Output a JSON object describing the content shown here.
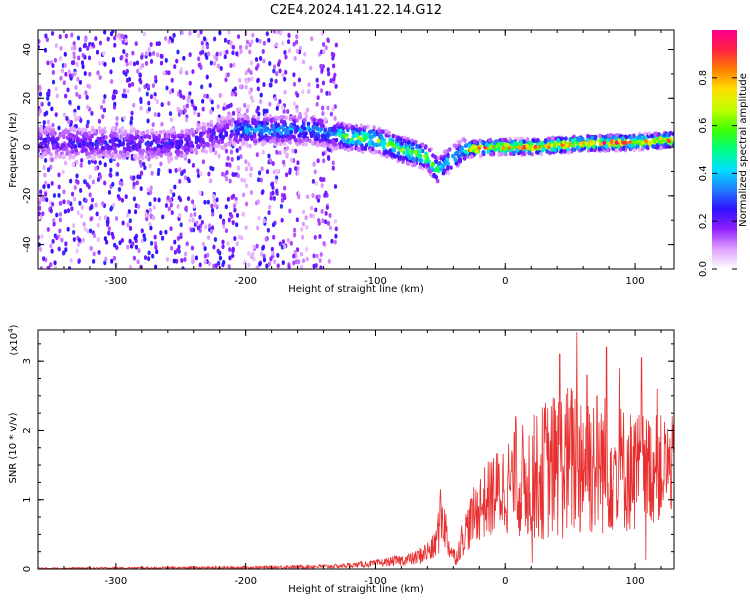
{
  "figure_title": "C2E4.2024.141.22.14.G12",
  "chart_data": [
    {
      "type": "heatmap",
      "title": "C2E4.2024.141.22.14.G12",
      "xlabel": "Height of straight line (km)",
      "ylabel": "Frequency (Hz)",
      "xlim": [
        -360,
        130
      ],
      "ylim": [
        -50,
        48
      ],
      "x_ticks": [
        -300,
        -200,
        -100,
        0,
        100
      ],
      "x_tick_labels": [
        "-300",
        "-200",
        "-100",
        "0",
        "100"
      ],
      "y_ticks": [
        -40,
        -20,
        0,
        20,
        40
      ],
      "y_tick_labels": [
        "-40",
        "-20",
        "0",
        "20",
        "40"
      ],
      "colorbar": {
        "label": "Normalized spectral amplitude",
        "range": [
          0.0,
          1.0
        ],
        "ticks": [
          0.0,
          0.2,
          0.4,
          0.6,
          0.8
        ],
        "tick_labels": [
          "0.0",
          "0.2",
          "0.4",
          "0.6",
          "0.8"
        ],
        "colors": [
          "#ffffff",
          "#e0a0ff",
          "#9020ff",
          "#3010ff",
          "#2080ff",
          "#00e0ff",
          "#00ff80",
          "#40ff00",
          "#c0ff00",
          "#ffe000",
          "#ff8000",
          "#ff2040",
          "#ff0090"
        ]
      },
      "trace_center": [
        {
          "x": -360,
          "f": 2
        },
        {
          "x": -250,
          "f": 1
        },
        {
          "x": -210,
          "f": 7
        },
        {
          "x": -150,
          "f": 7
        },
        {
          "x": -120,
          "f": 4
        },
        {
          "x": -100,
          "f": 3
        },
        {
          "x": -80,
          "f": -1
        },
        {
          "x": -60,
          "f": -4
        },
        {
          "x": -52,
          "f": -10
        },
        {
          "x": -45,
          "f": -6
        },
        {
          "x": -30,
          "f": -1
        },
        {
          "x": -10,
          "f": 0
        },
        {
          "x": 20,
          "f": 0
        },
        {
          "x": 60,
          "f": 1.5
        },
        {
          "x": 100,
          "f": 2
        },
        {
          "x": 130,
          "f": 3
        }
      ],
      "noise_region": {
        "x_start": -360,
        "x_end": -130,
        "f_range": [
          -50,
          48
        ],
        "gaps": [
          [
            -205,
            -192
          ],
          [
            -158,
            -148
          ]
        ]
      }
    },
    {
      "type": "line",
      "xlabel": "Height of straight line (km)",
      "ylabel": "SNR (10 * v/v)",
      "y_multiplier": "(x10",
      "y_multiplier_exp": "4",
      "y_multiplier_close": ")",
      "xlim": [
        -360,
        130
      ],
      "ylim": [
        0,
        3.45
      ],
      "x_ticks": [
        -300,
        -200,
        -100,
        0,
        100
      ],
      "x_tick_labels": [
        "-300",
        "-200",
        "-100",
        "0",
        "100"
      ],
      "y_ticks": [
        0,
        1,
        2,
        3
      ],
      "y_tick_labels": [
        "0",
        "1",
        "2",
        "3"
      ],
      "color": "#e83030",
      "envelope": [
        {
          "x": -360,
          "base": 0.01,
          "amp": 0.01
        },
        {
          "x": -200,
          "base": 0.02,
          "amp": 0.02
        },
        {
          "x": -130,
          "base": 0.04,
          "amp": 0.03
        },
        {
          "x": -100,
          "base": 0.08,
          "amp": 0.05
        },
        {
          "x": -70,
          "base": 0.15,
          "amp": 0.1
        },
        {
          "x": -55,
          "base": 0.3,
          "amp": 0.2
        },
        {
          "x": -48,
          "base": 0.8,
          "amp": 0.5
        },
        {
          "x": -44,
          "base": 0.35,
          "amp": 0.2
        },
        {
          "x": -38,
          "base": 0.15,
          "amp": 0.1
        },
        {
          "x": -32,
          "base": 0.5,
          "amp": 0.3
        },
        {
          "x": -20,
          "base": 0.9,
          "amp": 0.5
        },
        {
          "x": 0,
          "base": 1.2,
          "amp": 0.7
        },
        {
          "x": 20,
          "base": 1.3,
          "amp": 0.9
        },
        {
          "x": 40,
          "base": 1.5,
          "amp": 1.1
        },
        {
          "x": 60,
          "base": 1.6,
          "amp": 1.2
        },
        {
          "x": 80,
          "base": 1.5,
          "amp": 1.0
        },
        {
          "x": 100,
          "base": 1.4,
          "amp": 0.9
        },
        {
          "x": 130,
          "base": 1.5,
          "amp": 0.7
        }
      ],
      "peaks": [
        {
          "x": 55,
          "y": 3.42
        },
        {
          "x": 78,
          "y": 3.2
        },
        {
          "x": 105,
          "y": 3.05
        },
        {
          "x": 42,
          "y": 3.1
        },
        {
          "x": 63,
          "y": 2.8
        },
        {
          "x": 117,
          "y": 2.6
        },
        {
          "x": 88,
          "y": 2.9
        },
        {
          "x": 31,
          "y": 2.4
        },
        {
          "x": 8,
          "y": 2.2
        },
        {
          "x": -9,
          "y": 1.6
        },
        {
          "x": -50,
          "y": 1.15
        }
      ]
    }
  ]
}
